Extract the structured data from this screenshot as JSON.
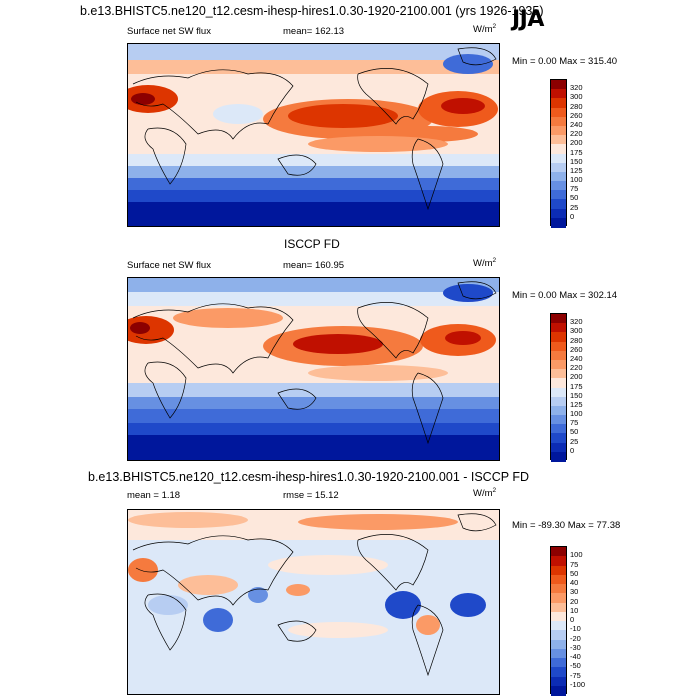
{
  "header": {
    "run_title": "b.e13.BHISTC5.ne120_t12.cesm-ihesp-hires1.0.30-1920-2100.001 (yrs 1926-1935)",
    "season": "JJA"
  },
  "panels": [
    {
      "id": "model",
      "heading": "",
      "left_label": "Surface net SW flux",
      "center_label": "mean= 162.13",
      "units": "W/m",
      "units_exp": "2",
      "minmax": "Min =   0.00 Max = 315.40",
      "map_icon": "world-map-icon",
      "colorbar": {
        "ticks": [
          "320",
          "300",
          "280",
          "260",
          "240",
          "220",
          "200",
          "175",
          "150",
          "125",
          "100",
          "75",
          "50",
          "25",
          "0"
        ],
        "colors": [
          "#8c0000",
          "#c01000",
          "#dd3500",
          "#ef5a1c",
          "#f57a3e",
          "#fb9a66",
          "#fdbe98",
          "#fde8dc",
          "#dce8f8",
          "#b7cdf2",
          "#8eb1ea",
          "#6790e2",
          "#3f6bd8",
          "#1f49c9",
          "#0c2cb4",
          "#00179c"
        ]
      }
    },
    {
      "id": "obs",
      "heading": "ISCCP FD",
      "left_label": "Surface net SW flux",
      "center_label": "mean= 160.95",
      "units": "W/m",
      "units_exp": "2",
      "minmax": "Min =   0.00 Max = 302.14",
      "map_icon": "world-map-icon",
      "colorbar": {
        "ticks": [
          "320",
          "300",
          "280",
          "260",
          "240",
          "220",
          "200",
          "175",
          "150",
          "125",
          "100",
          "75",
          "50",
          "25",
          "0"
        ],
        "colors": [
          "#8c0000",
          "#c01000",
          "#dd3500",
          "#ef5a1c",
          "#f57a3e",
          "#fb9a66",
          "#fdbe98",
          "#fde8dc",
          "#dce8f8",
          "#b7cdf2",
          "#8eb1ea",
          "#6790e2",
          "#3f6bd8",
          "#1f49c9",
          "#0c2cb4",
          "#00179c"
        ]
      }
    },
    {
      "id": "diff",
      "heading": "b.e13.BHISTC5.ne120_t12.cesm-ihesp-hires1.0.30-1920-2100.001 - ISCCP FD",
      "left_label": "mean =   1.18",
      "center_label": "rmse =  15.12",
      "units": "W/m",
      "units_exp": "2",
      "minmax": "Min = -89.30 Max =  77.38",
      "map_icon": "world-map-icon",
      "colorbar": {
        "ticks": [
          "100",
          "75",
          "50",
          "40",
          "30",
          "20",
          "10",
          "0",
          "-10",
          "-20",
          "-30",
          "-40",
          "-50",
          "-75",
          "-100"
        ],
        "colors": [
          "#8c0000",
          "#c01000",
          "#dd3500",
          "#ef5a1c",
          "#f57a3e",
          "#fb9a66",
          "#fdbe98",
          "#fde8dc",
          "#dce8f8",
          "#b7cdf2",
          "#8eb1ea",
          "#6790e2",
          "#3f6bd8",
          "#1f49c9",
          "#0c2cb4",
          "#00179c"
        ]
      }
    }
  ]
}
